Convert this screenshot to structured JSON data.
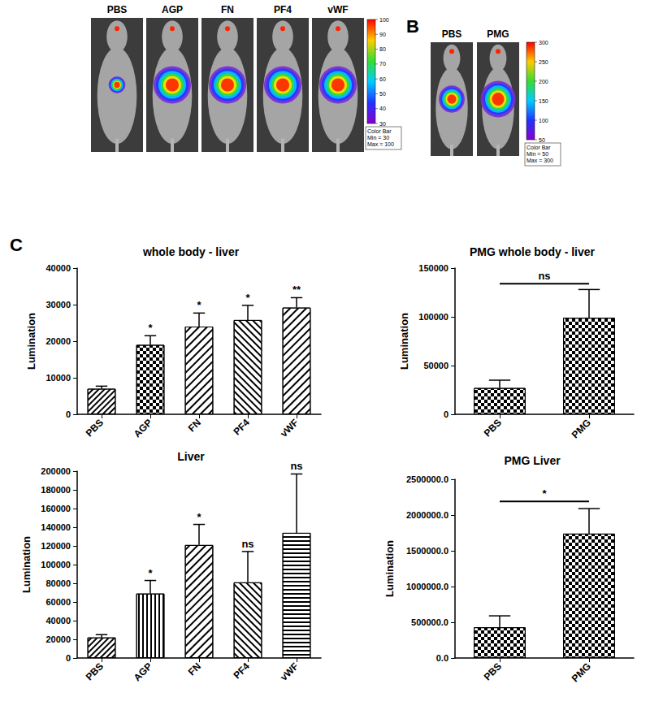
{
  "imaging": [
    {
      "labels": [
        "PBS",
        "AGP",
        "FN",
        "PF4",
        "vWF"
      ],
      "colorbar": {
        "range": [
          30,
          100
        ],
        "ticks": [
          100,
          90,
          80,
          70,
          60,
          50,
          40,
          30
        ],
        "caption": [
          "Color Bar",
          "Min = 30",
          "Max = 100"
        ]
      }
    },
    {
      "panel": "B",
      "labels": [
        "PBS",
        "PMG"
      ],
      "colorbar": {
        "range": [
          50,
          300
        ],
        "ticks": [
          300,
          250,
          200,
          150,
          100,
          50
        ],
        "caption": [
          "Color Bar",
          "Min = 50",
          "Max = 300"
        ]
      }
    }
  ],
  "chart_panel": "C",
  "chart_data": [
    {
      "type": "bar",
      "title": "whole body - liver",
      "y_label": "Lumination",
      "categories": [
        "PBS",
        "AGP",
        "FN",
        "PF4",
        "vWF"
      ],
      "values": [
        7000,
        19000,
        24000,
        25800,
        29200
      ],
      "errors": [
        700,
        2500,
        3700,
        4000,
        2700
      ],
      "significance": [
        null,
        "*",
        "*",
        "*",
        "**"
      ],
      "color": "#000000",
      "ylim": [
        0,
        40000
      ],
      "yticks": [
        0,
        10000,
        20000,
        30000,
        40000
      ],
      "grid": false
    },
    {
      "type": "bar",
      "title": "PMG whole body - liver",
      "y_label": "Lumination",
      "categories": [
        "PBS",
        "PMG"
      ],
      "values": [
        27000,
        99000
      ],
      "errors": [
        8000,
        29000
      ],
      "comparison": {
        "text": "ns",
        "categories": [
          "PBS",
          "PMG"
        ]
      },
      "color": "#000000",
      "ylim": [
        0,
        150000
      ],
      "yticks": [
        0,
        50000,
        100000,
        150000
      ],
      "grid": false
    },
    {
      "type": "bar",
      "title": "Liver",
      "y_label": "Lumination",
      "categories": [
        "PBS",
        "AGP",
        "FN",
        "PF4",
        "vWF"
      ],
      "values": [
        22000,
        69000,
        121000,
        81000,
        134000
      ],
      "errors": [
        3000,
        14000,
        22000,
        33000,
        63000
      ],
      "significance": [
        null,
        "*",
        "*",
        "ns",
        "ns"
      ],
      "color": "#000000",
      "ylim": [
        0,
        200000
      ],
      "yticks": [
        0,
        20000,
        40000,
        60000,
        80000,
        100000,
        120000,
        140000,
        160000,
        180000,
        200000
      ],
      "grid": false
    },
    {
      "type": "bar",
      "title": "PMG Liver",
      "y_label": "Lumination",
      "categories": [
        "PBS",
        "PMG"
      ],
      "values": [
        430000,
        1740000
      ],
      "errors": [
        160000,
        350000
      ],
      "comparison": {
        "text": "*",
        "categories": [
          "PBS",
          "PMG"
        ]
      },
      "color": "#000000",
      "ylim": [
        0,
        2500000
      ],
      "yticks": [
        {
          "value": 0,
          "label": "0.0"
        },
        {
          "value": 500000,
          "label": "500000.0"
        },
        {
          "value": 1000000,
          "label": "1000000.0"
        },
        {
          "value": 1500000,
          "label": "1500000.0"
        },
        {
          "value": 2000000,
          "label": "2000000.0"
        },
        {
          "value": 2500000,
          "label": "2500000.0"
        }
      ],
      "grid": false
    }
  ]
}
